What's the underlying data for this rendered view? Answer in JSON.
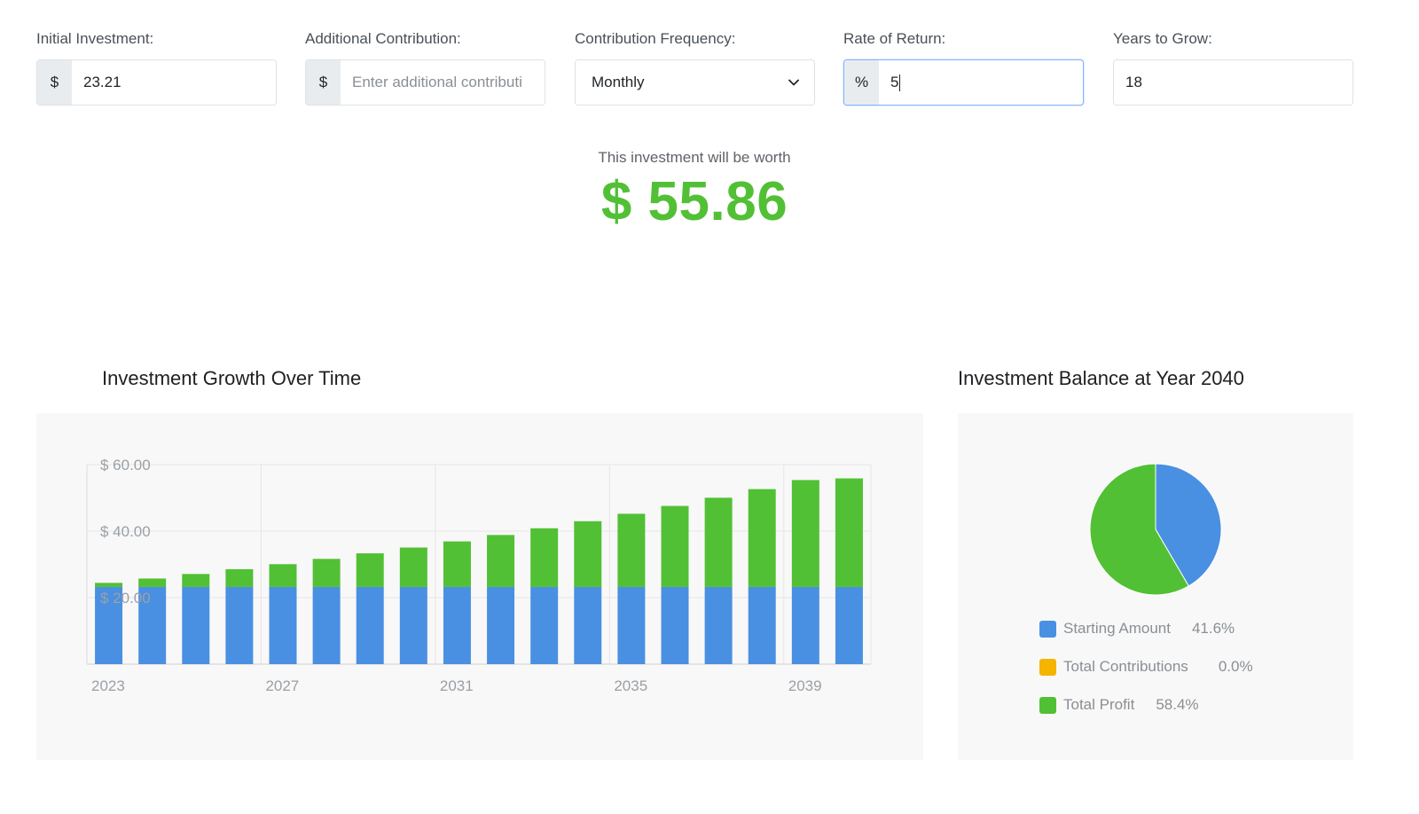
{
  "inputs": {
    "initial_investment": {
      "label": "Initial Investment:",
      "prefix": "$",
      "value": "23.21"
    },
    "additional_contribution": {
      "label": "Additional Contribution:",
      "prefix": "$",
      "placeholder": "Enter additional contributi"
    },
    "contribution_frequency": {
      "label": "Contribution Frequency:",
      "value": "Monthly",
      "icon": "chevron-down-icon"
    },
    "rate_of_return": {
      "label": "Rate of Return:",
      "prefix": "%",
      "value": "5"
    },
    "years_to_grow": {
      "label": "Years to Grow:",
      "value": "18"
    }
  },
  "result": {
    "label": "This investment will be worth",
    "value": "$ 55.86"
  },
  "colors": {
    "starting": "#4a90e2",
    "contributions": "#f4b400",
    "profit": "#52c035"
  },
  "chart_data": [
    {
      "type": "bar",
      "stacked": true,
      "title": "Investment Growth Over Time",
      "categories": [
        "2023",
        "2024",
        "2025",
        "2026",
        "2027",
        "2028",
        "2029",
        "2030",
        "2031",
        "2032",
        "2033",
        "2034",
        "2035",
        "2036",
        "2037",
        "2038",
        "2039",
        "2040"
      ],
      "x_tick_labels": [
        "2023",
        "2027",
        "2031",
        "2035",
        "2039"
      ],
      "y_tick_labels": [
        "$ 20.00",
        "$ 40.00",
        "$ 60.00"
      ],
      "ylim": [
        0,
        60
      ],
      "grid": true,
      "series": [
        {
          "values": [
            23.21,
            23.21,
            23.21,
            23.21,
            23.21,
            23.21,
            23.21,
            23.21,
            23.21,
            23.21,
            23.21,
            23.21,
            23.21,
            23.21,
            23.21,
            23.21,
            23.21,
            23.21
          ]
        },
        {
          "values": [
            1.24,
            2.54,
            3.91,
            5.35,
            6.86,
            8.45,
            10.11,
            11.86,
            13.7,
            15.63,
            17.65,
            19.78,
            22.02,
            24.37,
            26.84,
            29.43,
            32.15,
            32.65
          ]
        }
      ]
    },
    {
      "type": "pie",
      "title": "Investment Balance at Year 2040",
      "legend_position": "bottom",
      "slices": [
        {
          "label": "Starting Amount",
          "value": 41.6,
          "display": "41.6%"
        },
        {
          "label": "Total Contributions",
          "value": 0.0,
          "display": "0.0%"
        },
        {
          "label": "Total Profit",
          "value": 58.4,
          "display": "58.4%"
        }
      ]
    }
  ]
}
